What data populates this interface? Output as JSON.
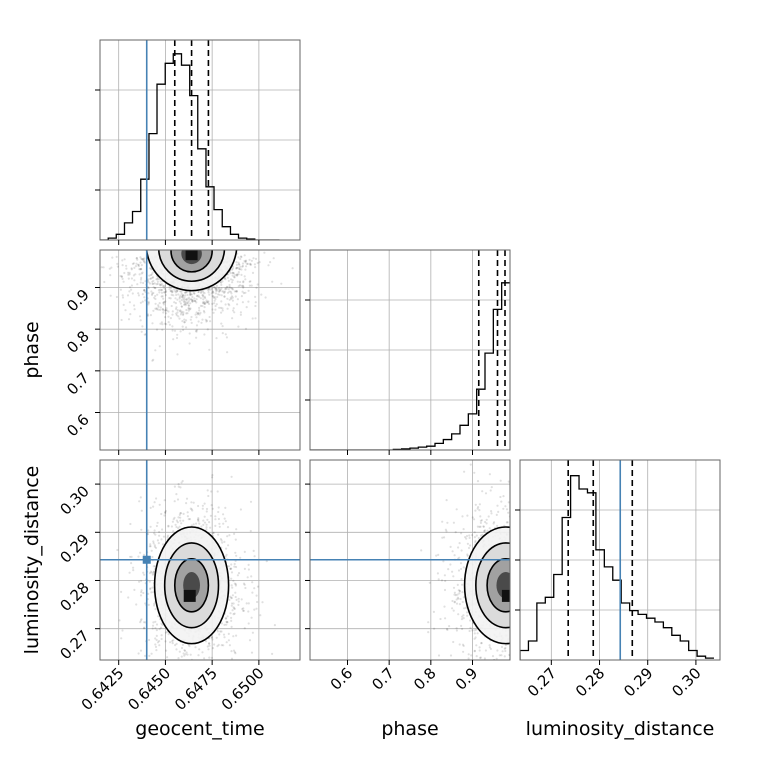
{
  "chart_data": {
    "type": "corner",
    "parameters": [
      {
        "name": "geocent_time",
        "label": "geocent_time",
        "range": [
          0.6415,
          0.6522
        ],
        "ticks": [
          "0.6425",
          "0.6450",
          "0.6475",
          "0.6500"
        ],
        "tick_values": [
          0.6425,
          0.645,
          0.6475,
          0.65
        ]
      },
      {
        "name": "phase",
        "label": "phase",
        "range": [
          0.51,
          0.99
        ],
        "ticks": [
          "0.6",
          "0.7",
          "0.8",
          "0.9"
        ],
        "tick_values": [
          0.6,
          0.7,
          0.8,
          0.9
        ]
      },
      {
        "name": "luminosity_distance",
        "label": "luminosity_distance",
        "range": [
          0.2635,
          0.305
        ],
        "ticks": [
          "0.27",
          "0.28",
          "0.29",
          "0.30"
        ],
        "tick_values": [
          0.27,
          0.28,
          0.29,
          0.3
        ]
      }
    ],
    "truths": [
      0.644,
      null,
      0.2843
    ],
    "truth_color": "#4682b4",
    "quantiles": [
      [
        0.6455,
        0.6464,
        0.6473
      ],
      [
        0.915,
        0.96,
        0.978
      ],
      [
        0.2735,
        0.2787,
        0.2868
      ]
    ],
    "histograms": [
      {
        "bins": [
          0.6415,
          0.64194,
          0.64237,
          0.64281,
          0.64324,
          0.64368,
          0.64412,
          0.64455,
          0.64499,
          0.64542,
          0.64586,
          0.6463,
          0.64673,
          0.64717,
          0.6476,
          0.64804,
          0.64848,
          0.64891,
          0.64935,
          0.64978,
          0.65022,
          0.65066,
          0.6511
        ],
        "values": [
          0.0,
          0.01,
          0.03,
          0.09,
          0.15,
          0.32,
          0.56,
          0.82,
          0.93,
          0.98,
          0.92,
          0.76,
          0.48,
          0.28,
          0.16,
          0.07,
          0.03,
          0.01,
          0.005,
          0.0,
          0.0,
          0.0
        ]
      },
      {
        "bins": [
          0.51,
          0.53,
          0.55,
          0.57,
          0.59,
          0.61,
          0.63,
          0.65,
          0.67,
          0.69,
          0.71,
          0.73,
          0.75,
          0.77,
          0.79,
          0.81,
          0.83,
          0.85,
          0.87,
          0.89,
          0.91,
          0.93,
          0.95,
          0.97,
          0.99
        ],
        "values": [
          0,
          0,
          0,
          0,
          0,
          0,
          0,
          0,
          0,
          0,
          0.003,
          0.006,
          0.01,
          0.015,
          0.02,
          0.035,
          0.055,
          0.085,
          0.13,
          0.19,
          0.32,
          0.51,
          0.74,
          0.88
        ]
      },
      {
        "bins": [
          0.2635,
          0.26525,
          0.267,
          0.26875,
          0.2705,
          0.27225,
          0.274,
          0.27575,
          0.2775,
          0.27925,
          0.281,
          0.28275,
          0.2845,
          0.28625,
          0.288,
          0.28975,
          0.2915,
          0.29325,
          0.295,
          0.29675,
          0.2985,
          0.30025,
          0.302,
          0.30375
        ],
        "values": [
          0.05,
          0.1,
          0.3,
          0.33,
          0.45,
          0.75,
          0.97,
          0.9,
          0.88,
          0.58,
          0.49,
          0.42,
          0.3,
          0.26,
          0.24,
          0.22,
          0.2,
          0.17,
          0.13,
          0.1,
          0.05,
          0.02,
          0.01
        ]
      }
    ],
    "scatter_2d": [
      {
        "x": "geocent_time",
        "y": "phase",
        "center": [
          0.6464,
          0.975
        ],
        "sigma": [
          0.0011,
          0.05
        ],
        "skew_y": -1,
        "peak": [
          0.6464,
          0.98
        ],
        "truth": [
          0.644,
          null
        ]
      },
      {
        "x": "geocent_time",
        "y": "luminosity_distance",
        "center": [
          0.6464,
          0.279
        ],
        "sigma": [
          0.0009,
          0.0055
        ],
        "peak": [
          0.6463,
          0.2768
        ],
        "truth": [
          0.644,
          0.2843
        ]
      },
      {
        "x": "phase",
        "y": "luminosity_distance",
        "center": [
          0.98,
          0.279
        ],
        "sigma": [
          0.045,
          0.0055
        ],
        "peak": [
          0.985,
          0.2768
        ],
        "truth": [
          null,
          0.2843
        ]
      }
    ],
    "grid": true
  }
}
